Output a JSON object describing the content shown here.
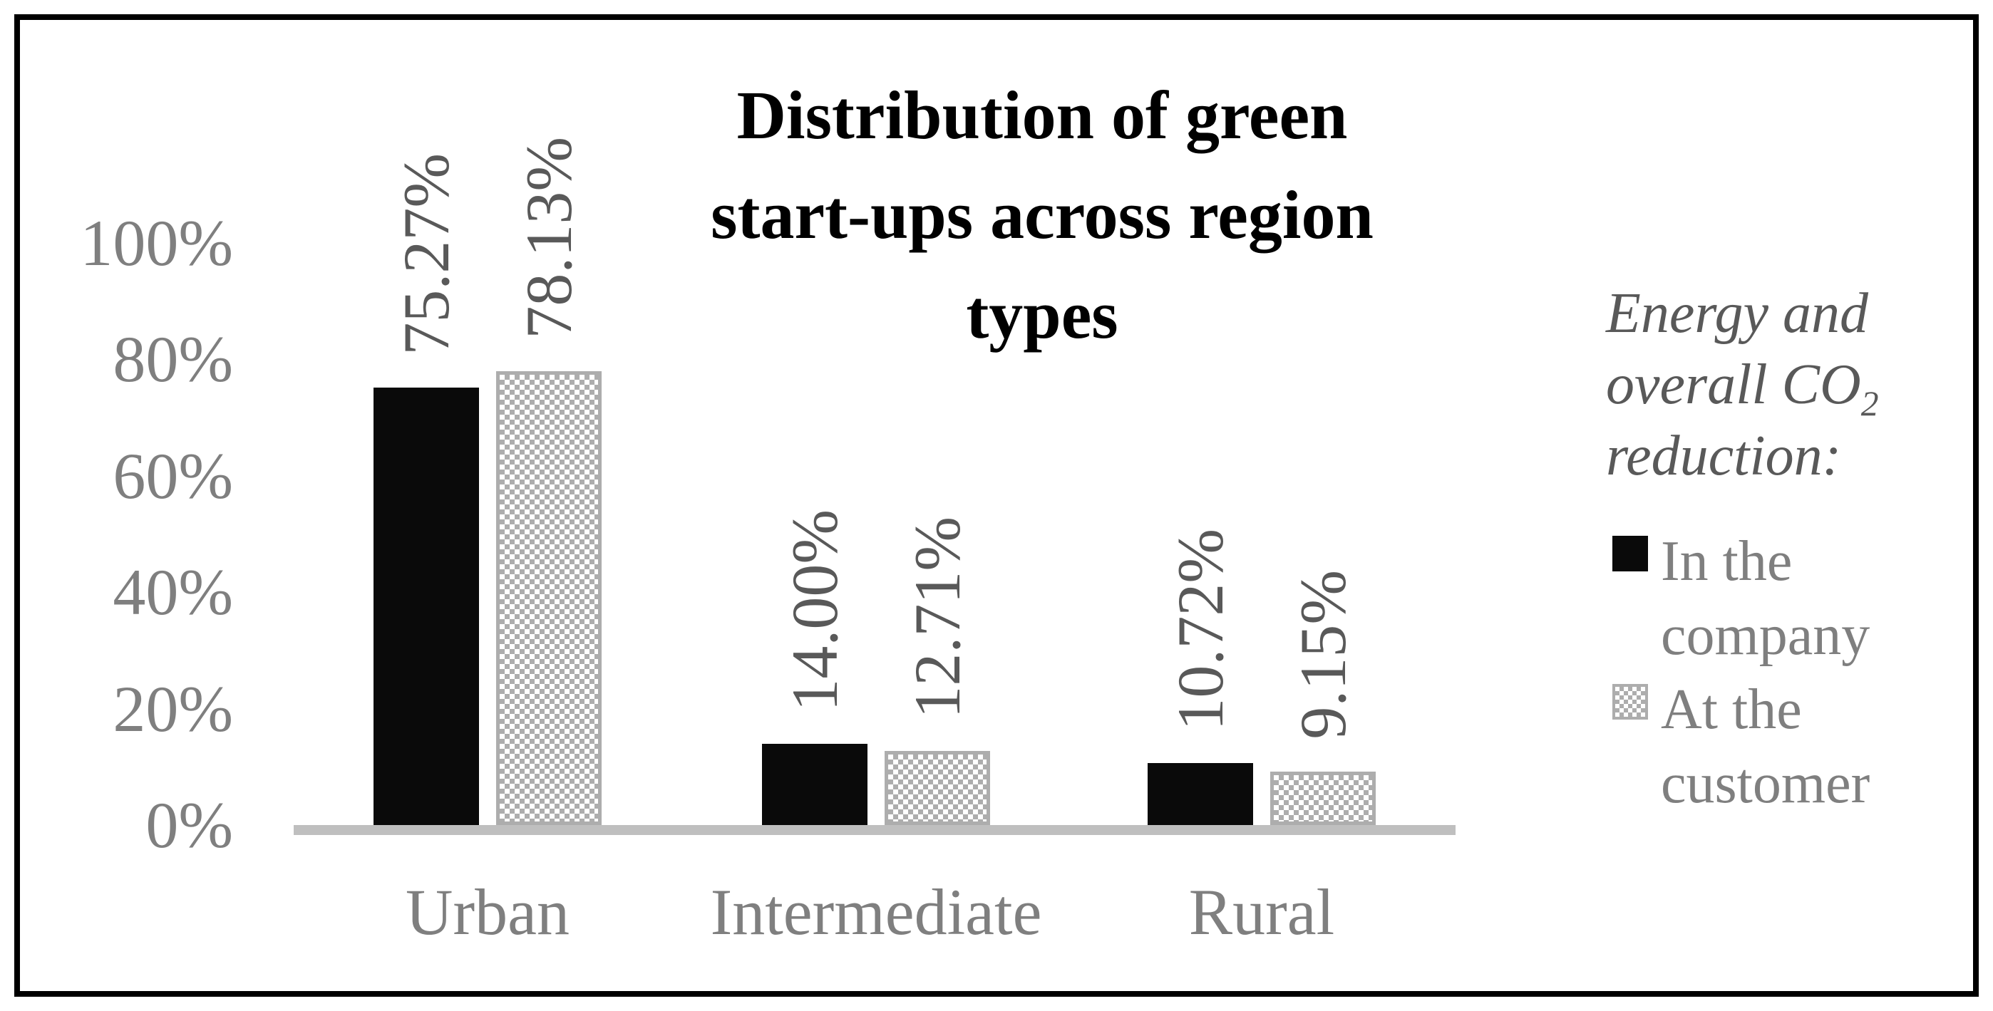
{
  "chart_data": {
    "type": "bar",
    "title": "Distribution of green start-ups across region types",
    "title_lines": [
      "Distribution of green",
      "start-ups across region",
      "types"
    ],
    "categories": [
      "Urban",
      "Intermediate",
      "Rural"
    ],
    "series": [
      {
        "name": "In the company",
        "values": [
          75.27,
          14.0,
          10.72
        ],
        "data_labels": [
          "75.27%",
          "14.00%",
          "10.72%"
        ],
        "fill": "solid-black"
      },
      {
        "name": "At the customer",
        "values": [
          78.13,
          12.71,
          9.15
        ],
        "data_labels": [
          "78.13%",
          "12.71%",
          "9.15%"
        ],
        "fill": "checkerboard-gray"
      }
    ],
    "y_axis": {
      "min": 0,
      "max": 100,
      "tick_step": 20,
      "unit": "%",
      "tick_labels": [
        "100%",
        "80%",
        "60%",
        "40%",
        "20%",
        "0%"
      ]
    },
    "grid": false,
    "legend_position": "right"
  },
  "legend": {
    "title_line1": "Energy and",
    "title_line2_main": "overall CO",
    "title_line2_sub": "2",
    "title_line3": "reduction:",
    "items": [
      {
        "lines": [
          "In the",
          "company"
        ],
        "swatch": "solid-black"
      },
      {
        "lines": [
          "At the",
          "customer"
        ],
        "swatch": "checkerboard-gray"
      }
    ]
  },
  "colors": {
    "bar_black": "#0a0a0a",
    "checker_gray": "#adadad",
    "axis_line_gray": "#bfbfbf",
    "data_label_gray": "#595959",
    "axis_label_gray": "#7f7f7f",
    "legend_title_gray": "#595959",
    "title_black": "#000000",
    "frame_black": "#000000",
    "background": "#ffffff"
  }
}
